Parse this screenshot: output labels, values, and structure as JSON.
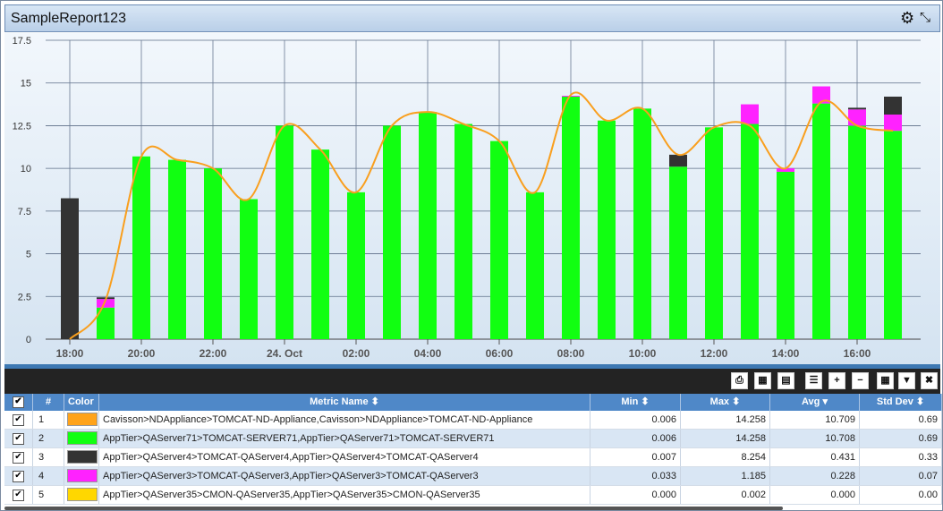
{
  "window": {
    "title": "SampleReport123",
    "settings_icon": "gear-icon",
    "collapse_icon": "collapse-arrows-icon"
  },
  "chart_data": {
    "type": "bar",
    "stacked": true,
    "ylim": [
      0,
      17.5
    ],
    "yticks": [
      "0",
      "2.5",
      "5",
      "7.5",
      "10",
      "12.5",
      "15",
      "17.5"
    ],
    "xticks": [
      "18:00",
      "20:00",
      "22:00",
      "24. Oct",
      "02:00",
      "04:00",
      "06:00",
      "08:00",
      "10:00",
      "12:00",
      "14:00",
      "16:00"
    ],
    "grid": true,
    "series": [
      {
        "color": "#11ff11",
        "values": [
          0,
          1.85,
          10.7,
          10.5,
          10.0,
          8.2,
          12.5,
          11.1,
          8.6,
          12.5,
          13.3,
          12.6,
          11.6,
          8.6,
          14.2,
          12.8,
          13.5,
          10.1,
          12.4,
          12.6,
          9.8,
          13.8,
          12.5,
          12.2
        ]
      },
      {
        "color": "#ff22ff",
        "values": [
          0,
          0.5,
          0,
          0,
          0,
          0,
          0,
          0,
          0,
          0,
          0,
          0,
          0,
          0,
          0.05,
          0,
          0,
          0,
          0,
          1.15,
          0.2,
          1.0,
          0.95,
          0.95
        ]
      },
      {
        "color": "#333333",
        "values": [
          8.25,
          0.1,
          0,
          0,
          0,
          0,
          0,
          0,
          0,
          0,
          0,
          0,
          0,
          0,
          0,
          0,
          0,
          0.7,
          0,
          0,
          0,
          0,
          0.1,
          1.05
        ]
      },
      {
        "type": "line",
        "color": "#f99f1e",
        "values": [
          0,
          2.3,
          10.7,
          10.5,
          10.0,
          8.2,
          12.5,
          11.1,
          8.6,
          12.5,
          13.3,
          12.6,
          11.6,
          8.6,
          14.3,
          12.8,
          13.5,
          10.8,
          12.4,
          12.5,
          10.0,
          13.9,
          12.5,
          12.2
        ]
      }
    ]
  },
  "toolbar": {
    "buttons": [
      {
        "name": "export-pdf-button",
        "icon": "pdf-icon",
        "glyph": "⎙"
      },
      {
        "name": "export-excel-button",
        "icon": "excel-icon",
        "glyph": "▦"
      },
      {
        "name": "export-word-button",
        "icon": "word-icon",
        "glyph": "▤"
      },
      {
        "name": "menu-button",
        "icon": "list-icon",
        "glyph": "☰"
      },
      {
        "name": "add-button",
        "icon": "plus-icon",
        "glyph": "+"
      },
      {
        "name": "remove-button",
        "icon": "minus-icon",
        "glyph": "−"
      },
      {
        "name": "table-view-button",
        "icon": "table-icon",
        "glyph": "▦"
      },
      {
        "name": "filter-button",
        "icon": "filter-icon",
        "glyph": "▼"
      },
      {
        "name": "close-button",
        "icon": "close-icon",
        "glyph": "✖"
      }
    ]
  },
  "table": {
    "headers": {
      "check": "✔",
      "num": "#",
      "color": "Color",
      "metric": "Metric Name",
      "min": "Min",
      "max": "Max",
      "avg": "Avg",
      "std": "Std Dev"
    },
    "sort_icons": {
      "metric": "⬍",
      "min": "⬍",
      "max": "⬍",
      "avg": "▾",
      "std": "⬍"
    },
    "rows": [
      {
        "check": "✔",
        "num": "1",
        "color": "#ffa31a",
        "metric": "Cavisson>NDAppliance>TOMCAT-ND-Appliance,Cavisson>NDAppliance>TOMCAT-ND-Appliance",
        "min": "0.006",
        "max": "14.258",
        "avg": "10.709",
        "std": "0.69"
      },
      {
        "check": "✔",
        "num": "2",
        "color": "#11ff11",
        "metric": "AppTier>QAServer71>TOMCAT-SERVER71,AppTier>QAServer71>TOMCAT-SERVER71",
        "min": "0.006",
        "max": "14.258",
        "avg": "10.708",
        "std": "0.69"
      },
      {
        "check": "✔",
        "num": "3",
        "color": "#333333",
        "metric": "AppTier>QAServer4>TOMCAT-QAServer4,AppTier>QAServer4>TOMCAT-QAServer4",
        "min": "0.007",
        "max": "8.254",
        "avg": "0.431",
        "std": "0.33"
      },
      {
        "check": "✔",
        "num": "4",
        "color": "#ff22ff",
        "metric": "AppTier>QAServer3>TOMCAT-QAServer3,AppTier>QAServer3>TOMCAT-QAServer3",
        "min": "0.033",
        "max": "1.185",
        "avg": "0.228",
        "std": "0.07"
      },
      {
        "check": "✔",
        "num": "5",
        "color": "#ffd700",
        "metric": "AppTier>QAServer35>CMON-QAServer35,AppTier>QAServer35>CMON-QAServer35",
        "min": "0.000",
        "max": "0.002",
        "avg": "0.000",
        "std": "0.00"
      }
    ]
  }
}
